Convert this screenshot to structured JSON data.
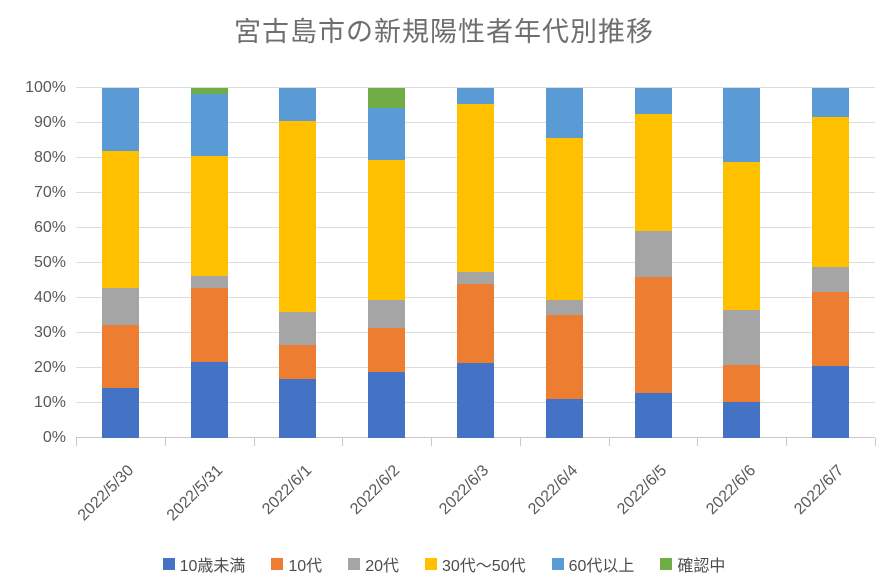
{
  "chart_data": {
    "type": "bar",
    "subtype": "stacked-100-percent",
    "title": "宮古島市の新規陽性者年代別推移",
    "xlabel": "",
    "ylabel": "",
    "ylim": [
      0,
      100
    ],
    "grid": true,
    "legend_position": "bottom",
    "value_unit": "percent",
    "yticks": [
      "0%",
      "10%",
      "20%",
      "30%",
      "40%",
      "50%",
      "60%",
      "70%",
      "80%",
      "90%",
      "100%"
    ],
    "categories": [
      "2022/5/30",
      "2022/5/31",
      "2022/6/1",
      "2022/6/2",
      "2022/6/3",
      "2022/6/4",
      "2022/6/5",
      "2022/6/6",
      "2022/6/7"
    ],
    "series": [
      {
        "key": "under-10",
        "name": "10歳未満",
        "color": "#4472C4",
        "values": [
          14.3,
          21.8,
          16.9,
          18.9,
          21.4,
          11.1,
          12.9,
          10.4,
          20.7
        ]
      },
      {
        "key": "10s",
        "name": "10代",
        "color": "#ED7D31",
        "values": [
          17.9,
          21.0,
          9.7,
          12.4,
          22.6,
          24.0,
          33.0,
          10.5,
          21.1
        ]
      },
      {
        "key": "20s",
        "name": "20代",
        "color": "#A5A5A5",
        "values": [
          10.7,
          3.6,
          9.3,
          8.2,
          3.5,
          4.3,
          13.2,
          15.8,
          7.2
        ]
      },
      {
        "key": "30s-50s",
        "name": "30代～50代",
        "color": "#FFC000",
        "values": [
          39.2,
          34.3,
          54.8,
          40.0,
          47.9,
          46.2,
          33.5,
          42.2,
          42.6
        ]
      },
      {
        "key": "60-plus",
        "name": "60代以上",
        "color": "#5B9BD5",
        "values": [
          17.9,
          17.5,
          9.3,
          14.7,
          4.6,
          14.4,
          7.4,
          21.1,
          8.4
        ]
      },
      {
        "key": "unconfirmed",
        "name": "確認中",
        "color": "#70AD47",
        "values": [
          0,
          1.8,
          0,
          5.8,
          0,
          0,
          0,
          0,
          0
        ]
      }
    ]
  }
}
